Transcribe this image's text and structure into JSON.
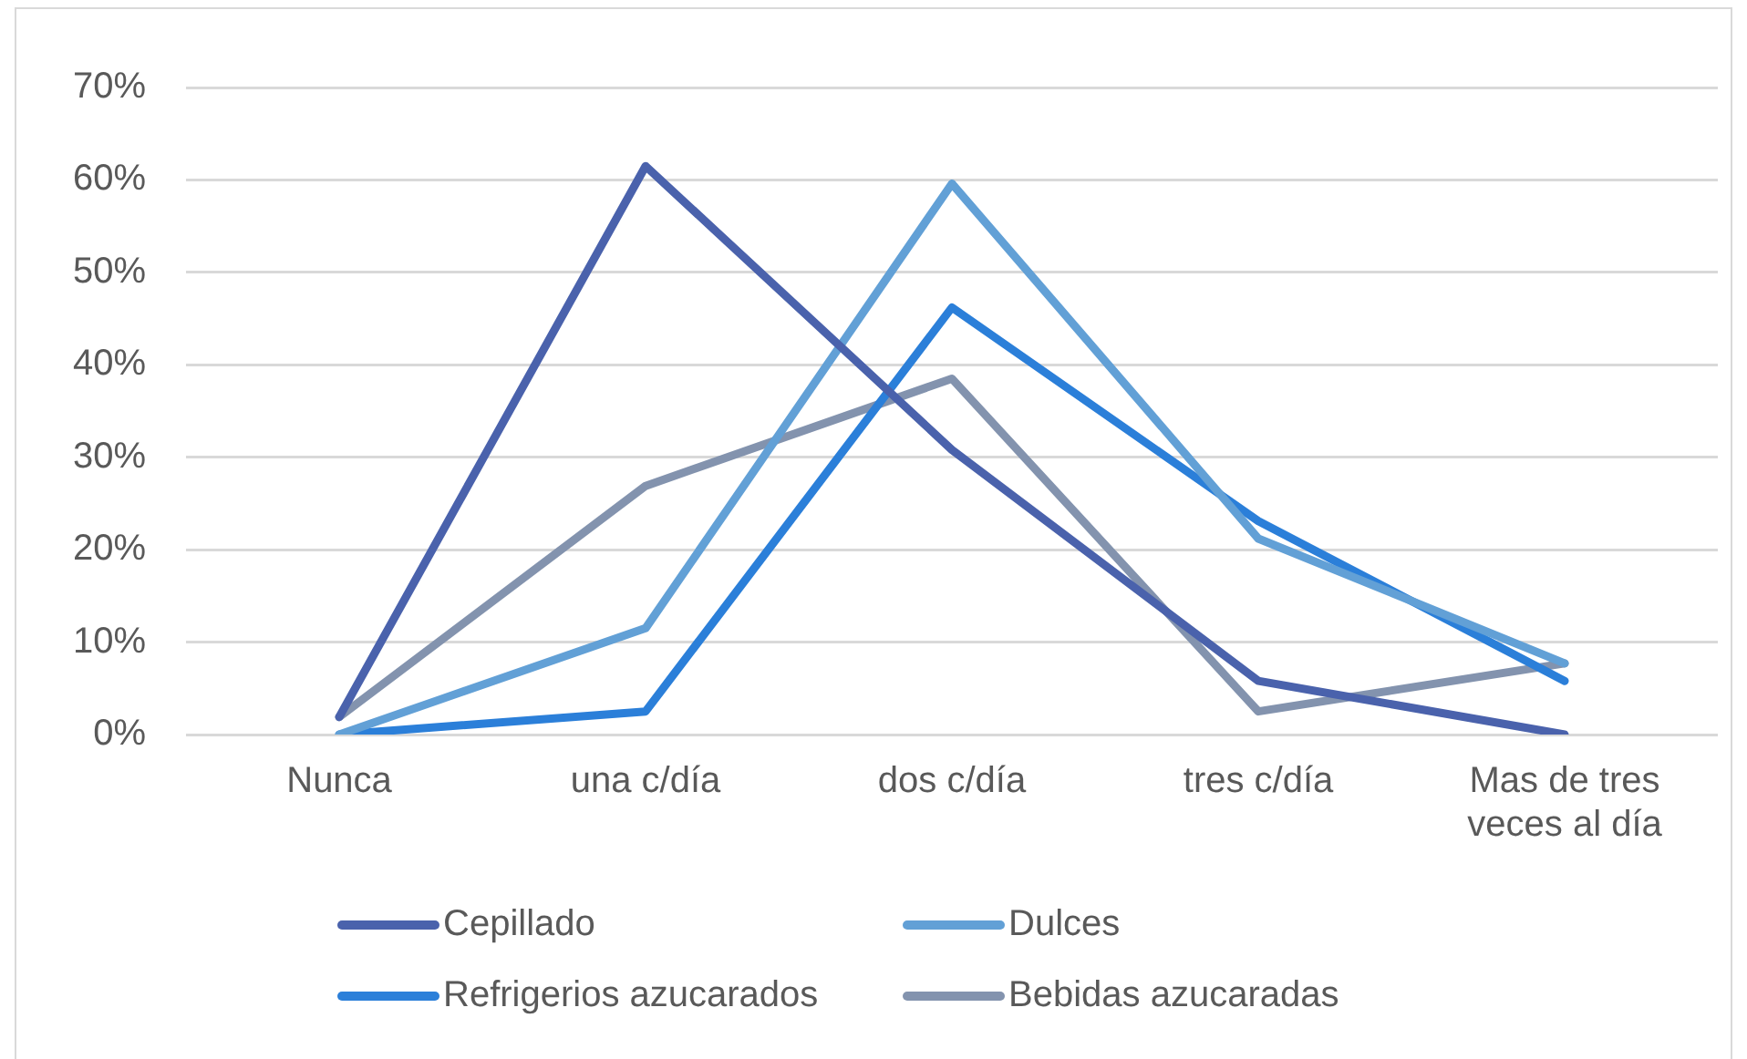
{
  "chart_data": {
    "type": "line",
    "categories": [
      "Nunca",
      "una c/día",
      "dos c/día",
      "tres c/día",
      "Mas de tres veces al día"
    ],
    "series": [
      {
        "name": "Cepillado",
        "color": "#4a62ac",
        "values": [
          1.9,
          61.5,
          30.8,
          5.8,
          0
        ]
      },
      {
        "name": "Dulces",
        "color": "#62a0d6",
        "values": [
          0,
          11.5,
          59.6,
          21.2,
          7.7
        ]
      },
      {
        "name": "Refrigerios azucarados",
        "color": "#2b7fd9",
        "values": [
          0,
          2.5,
          46.2,
          23.1,
          5.8
        ]
      },
      {
        "name": "Bebidas azucaradas",
        "color": "#8393ae",
        "values": [
          1.9,
          26.9,
          38.5,
          2.5,
          7.7
        ]
      }
    ],
    "ylim": [
      0,
      70
    ],
    "yticks": [
      {
        "value": 0,
        "label": "0%"
      },
      {
        "value": 10,
        "label": "10%"
      },
      {
        "value": 20,
        "label": "20%"
      },
      {
        "value": 30,
        "label": "30%"
      },
      {
        "value": 40,
        "label": "40%"
      },
      {
        "value": 50,
        "label": "50%"
      },
      {
        "value": 60,
        "label": "60%"
      },
      {
        "value": 70,
        "label": "70%"
      }
    ],
    "grid": "y",
    "legend": "bottom",
    "marker": "none",
    "line_style": "solid"
  }
}
